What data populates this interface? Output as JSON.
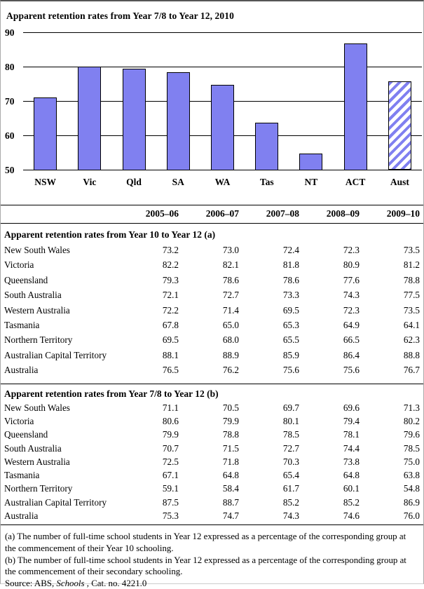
{
  "chart_data": [
    {
      "type": "bar",
      "title": "Apparent retention rates from Year 7/8 to Year 12, 2010",
      "categories": [
        "NSW",
        "Vic",
        "Qld",
        "SA",
        "WA",
        "Tas",
        "NT",
        "ACT",
        "Aust"
      ],
      "values": [
        71.3,
        80.2,
        79.6,
        78.5,
        75.0,
        63.8,
        54.8,
        86.9,
        76.0
      ],
      "ylim": [
        50,
        90
      ],
      "yticks": [
        90,
        80,
        70,
        60,
        50
      ],
      "hatched_category": "Aust",
      "bar_color": "#8080f0",
      "grid": "horizontal",
      "legend": "none",
      "xlabel": "",
      "ylabel": ""
    },
    {
      "type": "table",
      "columns": [
        "2005–06",
        "2006–07",
        "2007–08",
        "2008–09",
        "2009–10"
      ],
      "sections": [
        {
          "title": "Apparent retention rates from Year 10 to Year 12 (a)",
          "rows": [
            {
              "label": "New South Wales",
              "values": [
                "73.2",
                "73.0",
                "72.4",
                "72.3",
                "73.5"
              ]
            },
            {
              "label": "Victoria",
              "values": [
                "82.2",
                "82.1",
                "81.8",
                "80.9",
                "81.2"
              ]
            },
            {
              "label": "Queensland",
              "values": [
                "79.3",
                "78.6",
                "78.6",
                "77.6",
                "78.8"
              ]
            },
            {
              "label": "South Australia",
              "values": [
                "72.1",
                "72.7",
                "73.3",
                "74.3",
                "77.5"
              ]
            },
            {
              "label": "Western Australia",
              "values": [
                "72.2",
                "71.4",
                "69.5",
                "72.3",
                "73.5"
              ]
            },
            {
              "label": "Tasmania",
              "values": [
                "67.8",
                "65.0",
                "65.3",
                "64.9",
                "64.1"
              ]
            },
            {
              "label": "Northern Territory",
              "values": [
                "69.5",
                "68.0",
                "65.5",
                "66.5",
                "62.3"
              ]
            },
            {
              "label": "Australian Capital Territory",
              "values": [
                "88.1",
                "88.9",
                "85.9",
                "86.4",
                "88.8"
              ]
            },
            {
              "label": "Australia",
              "values": [
                "76.5",
                "76.2",
                "75.6",
                "75.6",
                "76.7"
              ]
            }
          ]
        },
        {
          "title": "Apparent retention rates from Year 7/8 to Year 12 (b)",
          "rows": [
            {
              "label": "New South Wales",
              "values": [
                "71.1",
                "70.5",
                "69.7",
                "69.6",
                "71.3"
              ]
            },
            {
              "label": "Victoria",
              "values": [
                "80.6",
                "79.9",
                "80.1",
                "79.4",
                "80.2"
              ]
            },
            {
              "label": "Queensland",
              "values": [
                "79.9",
                "78.8",
                "78.5",
                "78.1",
                "79.6"
              ]
            },
            {
              "label": "South Australia",
              "values": [
                "70.7",
                "71.5",
                "72.7",
                "74.4",
                "78.5"
              ]
            },
            {
              "label": "Western Australia",
              "values": [
                "72.5",
                "71.8",
                "70.3",
                "73.8",
                "75.0"
              ]
            },
            {
              "label": "Tasmania",
              "values": [
                "67.1",
                "64.8",
                "65.4",
                "64.8",
                "63.8"
              ]
            },
            {
              "label": "Northern Territory",
              "values": [
                "59.1",
                "58.4",
                "61.7",
                "60.1",
                "54.8"
              ]
            },
            {
              "label": "Australian Capital Territory",
              "values": [
                "87.5",
                "88.7",
                "85.2",
                "85.2",
                "86.9"
              ]
            },
            {
              "label": "Australia",
              "values": [
                "75.3",
                "74.7",
                "74.3",
                "74.6",
                "76.0"
              ]
            }
          ]
        }
      ]
    }
  ],
  "footnotes": [
    "(a) The number of full-time school students in Year 12 expressed as a percentage of the corresponding group at the commencement of their Year 10 schooling.",
    "(b) The number of full-time school students in Year 12 expressed as a percentage of the corresponding group at the commencement of their secondary schooling."
  ],
  "source": {
    "prefix": "Source: ABS, ",
    "italic": "Schools",
    "suffix": " , Cat. no. 4221.0"
  }
}
